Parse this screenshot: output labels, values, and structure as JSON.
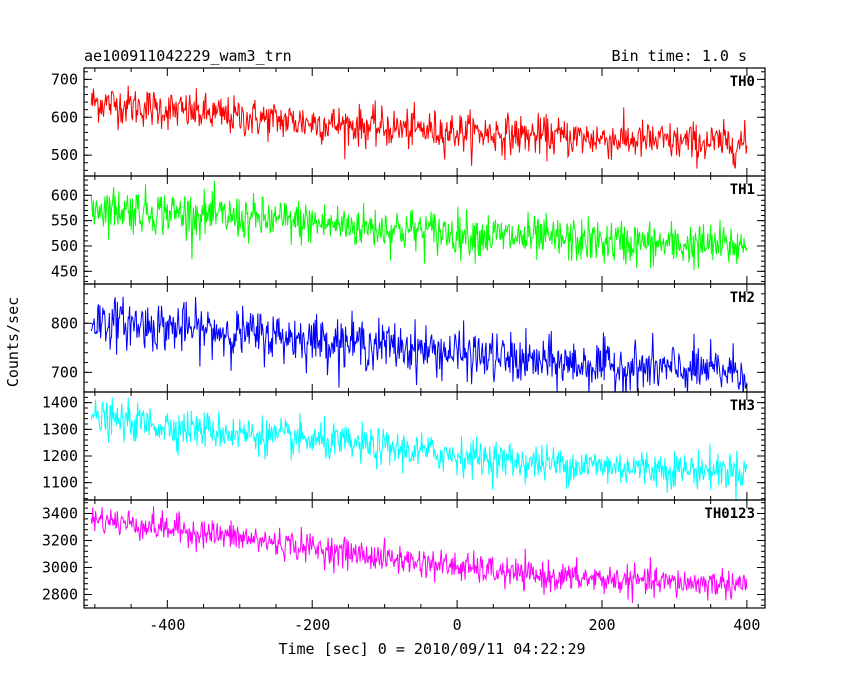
{
  "chart_data": {
    "type": "line",
    "title_left": "ae100911042229_wam3_trn",
    "title_right": "Bin time: 1.0 s",
    "xlabel": "Time [sec] 0 = 2010/09/11 04:22:29",
    "ylabel": "Counts/sec",
    "xlim": [
      -515,
      425
    ],
    "xticks": [
      -400,
      -200,
      0,
      200,
      400
    ],
    "grid": false,
    "panels": [
      {
        "name": "TH0",
        "color": "#ff0000",
        "ylim": [
          445,
          730
        ],
        "yticks": [
          500,
          600,
          700
        ],
        "trend": [
          [
            -500,
            640
          ],
          [
            -300,
            600
          ],
          [
            -100,
            572
          ],
          [
            100,
            552
          ],
          [
            300,
            535
          ],
          [
            400,
            530
          ]
        ],
        "noise": 26
      },
      {
        "name": "TH1",
        "color": "#00ff00",
        "ylim": [
          425,
          638
        ],
        "yticks": [
          450,
          500,
          550,
          600
        ],
        "trend": [
          [
            -500,
            577
          ],
          [
            -300,
            555
          ],
          [
            -100,
            535
          ],
          [
            100,
            515
          ],
          [
            300,
            502
          ],
          [
            400,
            500
          ]
        ],
        "noise": 22
      },
      {
        "name": "TH2",
        "color": "#0000ff",
        "ylim": [
          660,
          880
        ],
        "yticks": [
          700,
          800
        ],
        "trend": [
          [
            -500,
            805
          ],
          [
            -300,
            780
          ],
          [
            -100,
            755
          ],
          [
            100,
            722
          ],
          [
            300,
            705
          ],
          [
            400,
            702
          ]
        ],
        "noise": 25
      },
      {
        "name": "TH3",
        "color": "#00ffff",
        "ylim": [
          1035,
          1440
        ],
        "yticks": [
          1100,
          1200,
          1300,
          1400
        ],
        "trend": [
          [
            -500,
            1340
          ],
          [
            -300,
            1285
          ],
          [
            -100,
            1230
          ],
          [
            100,
            1175
          ],
          [
            300,
            1150
          ],
          [
            400,
            1145
          ]
        ],
        "noise": 35
      },
      {
        "name": "TH0123",
        "color": "#ff00ff",
        "ylim": [
          2700,
          3500
        ],
        "yticks": [
          2800,
          3000,
          3200,
          3400
        ],
        "trend": [
          [
            -500,
            3360
          ],
          [
            -300,
            3220
          ],
          [
            -100,
            3070
          ],
          [
            100,
            2940
          ],
          [
            300,
            2885
          ],
          [
            400,
            2880
          ]
        ],
        "noise": 55
      }
    ]
  }
}
